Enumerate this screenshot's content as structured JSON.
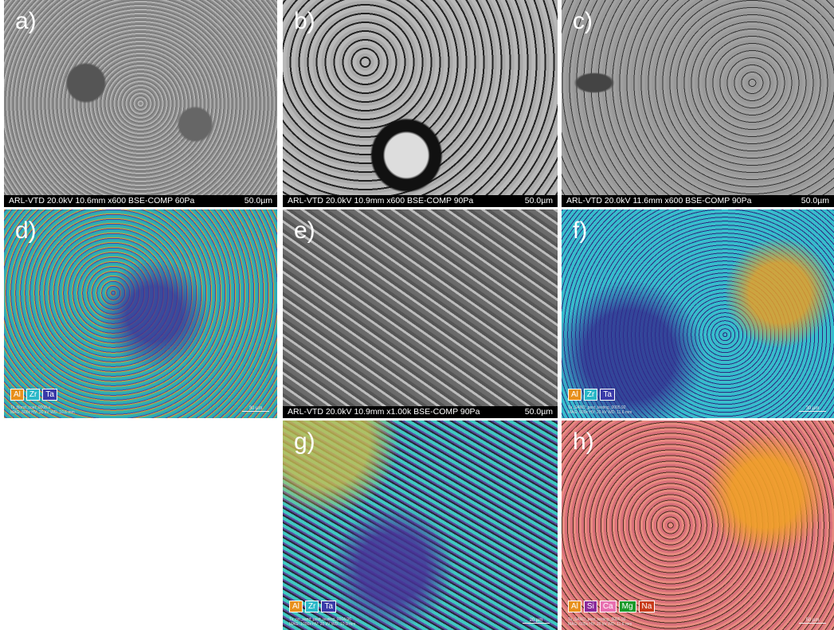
{
  "panels": [
    {
      "label": "a)",
      "footer": {
        "left": "ARL-VTD 20.0kV 10.6mm x600 BSE-COMP 60Pa",
        "scale": "50.0µm"
      }
    },
    {
      "label": "b)",
      "footer": {
        "left": "ARL-VTD 20.0kV 10.9mm x600 BSE-COMP 90Pa",
        "scale": "50.0µm"
      }
    },
    {
      "label": "c)",
      "footer": {
        "left": "ARL-VTD 20.0kV 11.6mm x600 BSE-COMP 90Pa",
        "scale": "50.0µm"
      }
    },
    {
      "label": "d)",
      "legend": [
        {
          "name": "Al",
          "color": "#e8901c"
        },
        {
          "name": "Zr",
          "color": "#2ab8c8"
        },
        {
          "name": "Ta",
          "color": "#3a3aa8"
        }
      ],
      "meta": {
        "name": "Ta_Bond_coat_0008.a",
        "params": "MAG: 600x   HV: 20 kV   WD: 10.6 mm",
        "scale": "30 µm"
      }
    },
    {
      "label": "e)",
      "footer": {
        "left": "ARL-VTD 20.0kV 10.9mm x1.00k BSE-COMP 90Pa",
        "scale": "50.0µm"
      }
    },
    {
      "label": "f)",
      "legend": [
        {
          "name": "Al",
          "color": "#e8901c"
        },
        {
          "name": "Zr",
          "color": "#2ab8c8"
        },
        {
          "name": "Ta",
          "color": "#3a3aa8"
        }
      ],
      "meta": {
        "name": "Ta_SAND_post_testing_0005.92",
        "params": "MAG: 600x   HV: 20 kV   WD: 11.6 mm",
        "scale": "30 µm"
      }
    },
    {
      "label": "g)",
      "legend": [
        {
          "name": "Al",
          "color": "#e8901c"
        },
        {
          "name": "Zr",
          "color": "#2ab8c8"
        },
        {
          "name": "Ta",
          "color": "#3a3aa8"
        }
      ],
      "meta": {
        "name": "Ta_no_sand_post_testing_0004.96",
        "params": "MAG: 1000x   HV: 20 kV   WD: 10.9 mm",
        "scale": "20 µm"
      }
    },
    {
      "label": "h)",
      "legend": [
        {
          "name": "Al",
          "color": "#e8901c"
        },
        {
          "name": "Si",
          "color": "#8a2a9a"
        },
        {
          "name": "Ca",
          "color": "#e870b0"
        },
        {
          "name": "Mg",
          "color": "#1a9a2a"
        },
        {
          "name": "Na",
          "color": "#c83a1a"
        }
      ],
      "meta": {
        "name": "Ta_SAND_post_testing_0005.92",
        "params": "MAG: 600x   HV: 20 kV   WD: 11.6 mm",
        "scale": "50 µm"
      }
    }
  ]
}
